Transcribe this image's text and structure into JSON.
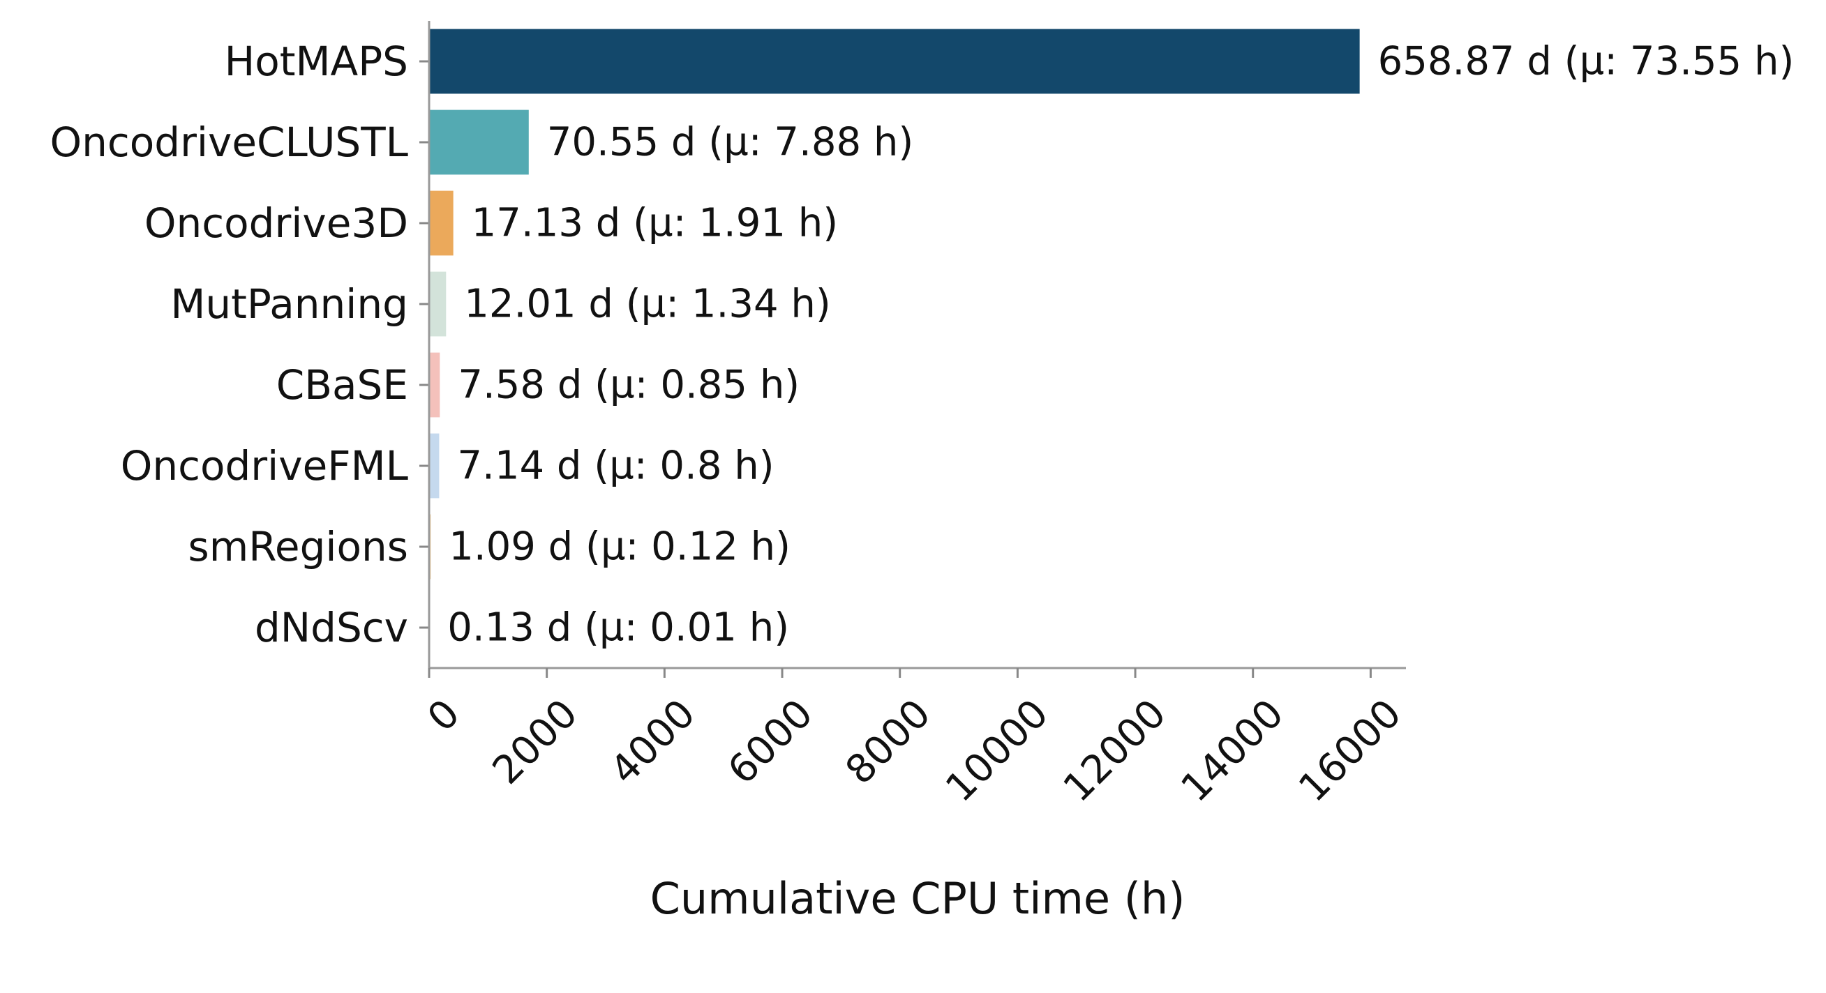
{
  "chart_data": {
    "type": "bar",
    "orientation": "horizontal",
    "title": "",
    "xlabel": "Cumulative CPU time (h)",
    "ylabel": "",
    "xlim": [
      0,
      16600
    ],
    "xticks": [
      0,
      2000,
      4000,
      6000,
      8000,
      10000,
      12000,
      14000,
      16000
    ],
    "xtick_rotation": -45,
    "grid": false,
    "legend": "none",
    "categories": [
      "HotMAPS",
      "OncodriveCLUSTL",
      "Oncodrive3D",
      "MutPanning",
      "CBaSE",
      "OncodriveFML",
      "smRegions",
      "dNdScv"
    ],
    "values": [
      15813,
      1693,
      411,
      288,
      182,
      171,
      26,
      3
    ],
    "data_labels": [
      "658.87 d (µ: 73.55 h)",
      "70.55 d (µ: 7.88 h)",
      "17.13 d (µ: 1.91 h)",
      "12.01 d (µ: 1.34 h)",
      "7.58 d (µ: 0.85 h)",
      "7.14 d (µ: 0.8 h)",
      "1.09 d (µ: 0.12 h)",
      "0.13 d (µ: 0.01 h)"
    ],
    "colors": [
      "#13486b",
      "#54aab2",
      "#eba95b",
      "#d3e3da",
      "#f4c1bb",
      "#c5d9ee",
      "#f0c68a",
      "#5b9f95"
    ]
  }
}
